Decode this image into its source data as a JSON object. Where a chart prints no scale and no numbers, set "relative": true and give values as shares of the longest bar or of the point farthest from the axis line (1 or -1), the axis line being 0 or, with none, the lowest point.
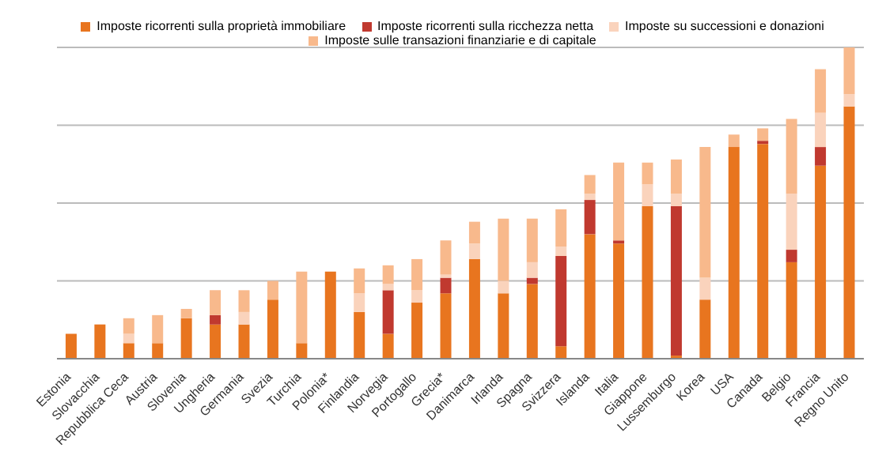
{
  "chart_data": {
    "type": "bar",
    "stacked": true,
    "relative": true,
    "grid": "y",
    "legend": "top",
    "categories": [
      "Estonia",
      "Slovacchia",
      "Repubblica Ceca",
      "Austria",
      "Slovenia",
      "Ungheria",
      "Germania",
      "Svezia",
      "Turchia",
      "Polonia*",
      "Finlandia",
      "Norvegia",
      "Portogallo",
      "Grecia*",
      "Danimarca",
      "Irlanda",
      "Spagna",
      "Svizzera",
      "Islanda",
      "Italia",
      "Giappone",
      "Lussemburgo",
      "Korea",
      "USA",
      "Canada",
      "Belgio",
      "Francia",
      "Regno Unito"
    ],
    "series": [
      {
        "name": "Imposte ricorrenti sulla proprietà immobiliare",
        "color": "#e8751f",
        "values": [
          0.08,
          0.11,
          0.05,
          0.05,
          0.13,
          0.11,
          0.11,
          0.19,
          0.05,
          0.28,
          0.15,
          0.08,
          0.18,
          0.21,
          0.32,
          0.21,
          0.24,
          0.04,
          0.4,
          0.37,
          0.49,
          0.01,
          0.19,
          0.68,
          0.69,
          0.31,
          0.62,
          0.81
        ]
      },
      {
        "name": "Imposte ricorrenti sulla ricchezza netta",
        "color": "#c0392f",
        "values": [
          0,
          0,
          0,
          0,
          0,
          0.03,
          0,
          0,
          0,
          0,
          0,
          0.14,
          0,
          0.05,
          0,
          0,
          0.02,
          0.29,
          0.11,
          0.01,
          0,
          0.48,
          0,
          0,
          0.01,
          0.04,
          0.06,
          0
        ]
      },
      {
        "name": "Imposte su successioni e donazioni",
        "color": "#fad3bc",
        "values": [
          0,
          0,
          0.03,
          0,
          0,
          0,
          0.04,
          0,
          0,
          0,
          0.06,
          0.02,
          0.04,
          0.01,
          0.05,
          0.04,
          0.05,
          0.03,
          0.02,
          0,
          0.07,
          0.04,
          0.07,
          0,
          0,
          0.18,
          0.11,
          0.04
        ]
      },
      {
        "name": "Imposte sulle transazioni finanziarie e di capitale",
        "color": "#f8b98c",
        "values": [
          0,
          0,
          0.05,
          0.09,
          0.03,
          0.08,
          0.07,
          0.06,
          0.23,
          0,
          0.08,
          0.06,
          0.1,
          0.11,
          0.07,
          0.2,
          0.14,
          0.12,
          0.06,
          0.25,
          0.07,
          0.11,
          0.42,
          0.04,
          0.04,
          0.24,
          0.14,
          0.15
        ]
      }
    ]
  }
}
